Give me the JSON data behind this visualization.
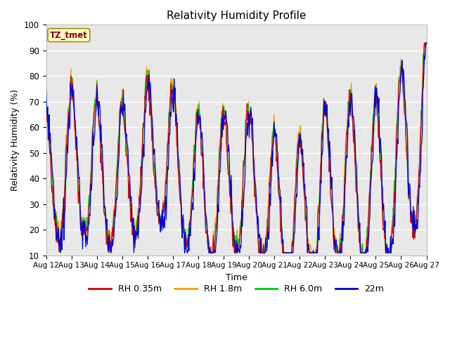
{
  "title": "Relativity Humidity Profile",
  "xlabel": "Time",
  "ylabel": "Relativity Humidity (%)",
  "ylim": [
    10,
    100
  ],
  "annotation": "TZ_tmet",
  "legend_labels": [
    "RH 0.35m",
    "RH 1.8m",
    "RH 6.0m",
    "22m"
  ],
  "line_colors": [
    "#dd0000",
    "#ff9900",
    "#00cc00",
    "#0000dd"
  ],
  "figure_bg": "#ffffff",
  "plot_bg": "#e8e8e8",
  "grid_color": "#ffffff",
  "x_tick_labels": [
    "Aug 12",
    "Aug 13",
    "Aug 14",
    "Aug 15",
    "Aug 16",
    "Aug 17",
    "Aug 18",
    "Aug 19",
    "Aug 20",
    "Aug 21",
    "Aug 22",
    "Aug 23",
    "Aug 24",
    "Aug 25",
    "Aug 26",
    "Aug 27"
  ],
  "n_points": 720,
  "seed": 7
}
